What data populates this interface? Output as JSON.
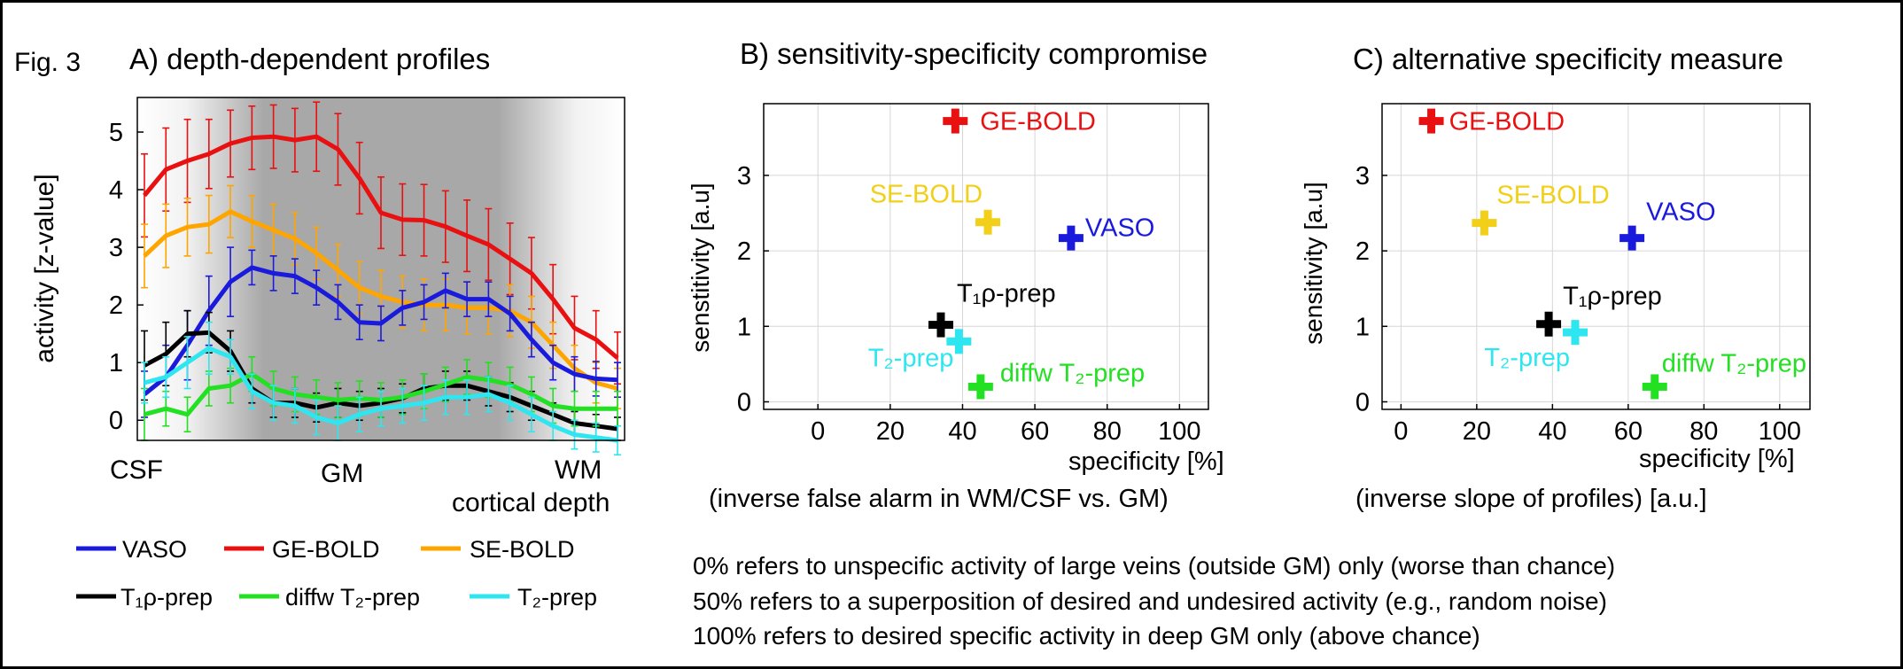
{
  "figure_label": "Fig. 3",
  "colors": {
    "VASO": "#1a1adc",
    "GE-BOLD": "#e81010",
    "SE-BOLD": "#ffa500",
    "T1rho-prep": "#000000",
    "diffw T2-prep": "#22e022",
    "T2-prep": "#2ee6f0",
    "SE-BOLD-marker": "#f2cf18",
    "grid": "#d6d6d6",
    "gm_shade": "#a6a6a6"
  },
  "panelA": {
    "title": "A) depth-dependent profiles",
    "ylabel": "activity [z-value]",
    "xtick_labels": [
      "CSF",
      "GM",
      "WM"
    ],
    "xlabel": "cortical depth",
    "yticks": [
      "0",
      "1",
      "2",
      "3",
      "4",
      "5"
    ],
    "legend": [
      {
        "name": "VASO",
        "key": "VASO"
      },
      {
        "name": "GE-BOLD",
        "key": "GE-BOLD"
      },
      {
        "name": "SE-BOLD",
        "key": "SE-BOLD"
      },
      {
        "name": "T₁ρ-prep",
        "key": "T1rho-prep"
      },
      {
        "name": "diffw T₂-prep",
        "key": "diffw T2-prep"
      },
      {
        "name": "T₂-prep",
        "key": "T2-prep"
      }
    ]
  },
  "panelB": {
    "title": "B) sensitivity-specificity compromise",
    "ylabel": "senstitivity [a.u]",
    "xlabel": "specificity [%]",
    "subtitle": "(inverse false alarm in WM/CSF vs. GM)",
    "xticks": [
      "0",
      "20",
      "40",
      "60",
      "80",
      "100"
    ],
    "yticks": [
      "0",
      "1",
      "2",
      "3"
    ]
  },
  "panelC": {
    "title": "C) alternative specificity measure",
    "ylabel": "sensitivity [a.u]",
    "xlabel": "specificity [%]",
    "subtitle": "(inverse slope of profiles) [a.u.]",
    "xticks": [
      "0",
      "20",
      "40",
      "60",
      "80",
      "100"
    ],
    "yticks": [
      "0",
      "1",
      "2",
      "3"
    ]
  },
  "notes": [
    "0% refers to unspecific activity of large veins (outside GM) only (worse than chance)",
    "50% refers to a superposition of desired and undesired activity (e.g., random noise)",
    "100% refers to desired specific activity in deep GM only (above chance)"
  ],
  "chart_data": [
    {
      "type": "line",
      "panel": "A",
      "x_range": [
        0,
        1
      ],
      "ylim": [
        -0.35,
        5.6
      ],
      "grid": false,
      "series": [
        {
          "name": "GE-BOLD",
          "key": "GE-BOLD",
          "values": [
            3.9,
            4.35,
            4.5,
            4.62,
            4.8,
            4.9,
            4.92,
            4.86,
            4.92,
            4.7,
            4.2,
            3.6,
            3.48,
            3.47,
            3.36,
            3.2,
            3.05,
            2.8,
            2.55,
            2.1,
            1.6,
            1.4,
            1.08
          ],
          "errors": [
            0.72,
            0.72,
            0.72,
            0.6,
            0.58,
            0.55,
            0.55,
            0.55,
            0.6,
            0.62,
            0.62,
            0.62,
            0.62,
            0.62,
            0.62,
            0.62,
            0.62,
            0.62,
            0.62,
            0.6,
            0.55,
            0.5,
            0.45
          ]
        },
        {
          "name": "SE-BOLD",
          "key": "SE-BOLD",
          "values": [
            2.85,
            3.2,
            3.35,
            3.4,
            3.62,
            3.45,
            3.3,
            3.15,
            2.9,
            2.6,
            2.3,
            2.15,
            2.05,
            2.0,
            2.0,
            1.95,
            1.95,
            1.9,
            1.7,
            1.3,
            0.9,
            0.65,
            0.55
          ],
          "errors": [
            0.55,
            0.55,
            0.5,
            0.5,
            0.45,
            0.45,
            0.45,
            0.45,
            0.45,
            0.45,
            0.45,
            0.45,
            0.45,
            0.45,
            0.45,
            0.45,
            0.45,
            0.45,
            0.45,
            0.4,
            0.4,
            0.35,
            0.35
          ]
        },
        {
          "name": "VASO",
          "key": "VASO",
          "values": [
            0.45,
            0.75,
            1.3,
            1.9,
            2.4,
            2.65,
            2.55,
            2.5,
            2.3,
            2.05,
            1.7,
            1.68,
            1.95,
            2.05,
            2.25,
            2.1,
            2.1,
            1.85,
            1.4,
            1.0,
            0.8,
            0.72,
            0.7
          ],
          "errors": [
            0.4,
            0.55,
            0.6,
            0.6,
            0.6,
            0.3,
            0.3,
            0.3,
            0.3,
            0.3,
            0.3,
            0.3,
            0.3,
            0.3,
            0.3,
            0.3,
            0.3,
            0.3,
            0.3,
            0.3,
            0.3,
            0.3,
            0.3
          ]
        },
        {
          "name": "T1rho-prep",
          "key": "T1rho-prep",
          "values": [
            0.95,
            1.15,
            1.5,
            1.52,
            1.2,
            0.55,
            0.3,
            0.3,
            0.22,
            0.3,
            0.25,
            0.3,
            0.38,
            0.55,
            0.6,
            0.6,
            0.5,
            0.4,
            0.25,
            0.1,
            -0.05,
            -0.1,
            -0.15
          ],
          "errors": [
            0.6,
            0.55,
            0.4,
            0.35,
            0.35,
            0.25,
            0.25,
            0.25,
            0.25,
            0.25,
            0.25,
            0.25,
            0.25,
            0.25,
            0.25,
            0.25,
            0.25,
            0.25,
            0.25,
            0.2,
            0.2,
            0.2,
            0.2
          ]
        },
        {
          "name": "diffw T2-prep",
          "key": "diffw T2-prep",
          "values": [
            0.1,
            0.2,
            0.1,
            0.55,
            0.6,
            0.8,
            0.55,
            0.45,
            0.4,
            0.35,
            0.38,
            0.35,
            0.4,
            0.5,
            0.62,
            0.75,
            0.7,
            0.62,
            0.45,
            0.25,
            0.2,
            0.2,
            0.2
          ],
          "errors": [
            0.45,
            0.3,
            0.3,
            0.3,
            0.3,
            0.3,
            0.3,
            0.3,
            0.3,
            0.3,
            0.3,
            0.3,
            0.3,
            0.3,
            0.3,
            0.3,
            0.3,
            0.3,
            0.3,
            0.3,
            0.3,
            0.3,
            0.3
          ]
        },
        {
          "name": "T2-prep",
          "key": "T2-prep",
          "values": [
            0.65,
            0.75,
            1.0,
            1.25,
            1.1,
            0.5,
            0.3,
            0.25,
            0.05,
            -0.05,
            0.1,
            0.2,
            0.25,
            0.3,
            0.4,
            0.4,
            0.45,
            0.3,
            0.1,
            -0.1,
            -0.25,
            -0.3,
            -0.35
          ],
          "errors": [
            0.35,
            0.35,
            0.45,
            0.45,
            0.3,
            0.3,
            0.3,
            0.3,
            0.3,
            0.3,
            0.3,
            0.3,
            0.3,
            0.3,
            0.3,
            0.3,
            0.3,
            0.3,
            0.3,
            0.25,
            0.25,
            0.25,
            0.25
          ]
        }
      ]
    },
    {
      "type": "scatter",
      "panel": "B",
      "xlim": [
        -15,
        108
      ],
      "ylim": [
        -0.1,
        3.95
      ],
      "grid": true,
      "series": [
        {
          "name": "GE-BOLD",
          "key": "GE-BOLD",
          "label": "GE-BOLD",
          "x": 38,
          "y": 3.72
        },
        {
          "name": "SE-BOLD",
          "key": "SE-BOLD-marker",
          "label": "SE-BOLD",
          "x": 47,
          "y": 2.38
        },
        {
          "name": "VASO",
          "key": "VASO",
          "label": "VASO",
          "x": 70,
          "y": 2.17
        },
        {
          "name": "T1rho-prep",
          "key": "T1rho-prep",
          "label": "T₁ρ-prep",
          "x": 34,
          "y": 1.02
        },
        {
          "name": "T2-prep",
          "key": "T2-prep",
          "label": "T₂-prep",
          "x": 39,
          "y": 0.8
        },
        {
          "name": "diffw T2-prep",
          "key": "diffw T2-prep",
          "label": "diffw T₂-prep",
          "x": 45,
          "y": 0.2
        }
      ]
    },
    {
      "type": "scatter",
      "panel": "C",
      "xlim": [
        -5,
        108
      ],
      "ylim": [
        -0.1,
        3.95
      ],
      "grid": true,
      "series": [
        {
          "name": "GE-BOLD",
          "key": "GE-BOLD",
          "label": "GE-BOLD",
          "x": 8,
          "y": 3.72
        },
        {
          "name": "SE-BOLD",
          "key": "SE-BOLD-marker",
          "label": "SE-BOLD",
          "x": 22,
          "y": 2.37
        },
        {
          "name": "VASO",
          "key": "VASO",
          "label": "VASO",
          "x": 61,
          "y": 2.17
        },
        {
          "name": "T1rho-prep",
          "key": "T1rho-prep",
          "label": "T₁ρ-prep",
          "x": 39,
          "y": 1.03
        },
        {
          "name": "T2-prep",
          "key": "T2-prep",
          "label": "T₂-prep",
          "x": 46,
          "y": 0.92
        },
        {
          "name": "diffw T2-prep",
          "key": "diffw T2-prep",
          "label": "diffw T₂-prep",
          "x": 67,
          "y": 0.2
        }
      ]
    }
  ]
}
